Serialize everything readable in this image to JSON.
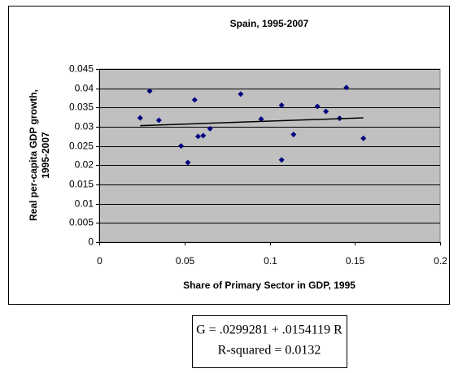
{
  "chart_data": {
    "type": "scatter",
    "title": "Spain, 1995-2007",
    "x_label": "Share of Primary Sector in GDP, 1995",
    "y_label": [
      "Real per-capita GDP growth,",
      "1995-2007"
    ],
    "xlim": [
      0,
      0.2
    ],
    "xticks": [
      0,
      0.05,
      0.1,
      0.15,
      0.2
    ],
    "ylim": [
      0,
      0.045
    ],
    "yticks": [
      0,
      0.005,
      0.01,
      0.015,
      0.02,
      0.025,
      0.03,
      0.035,
      0.04,
      0.045
    ],
    "grid": true,
    "series": [
      {
        "color": "#000080",
        "x": [
          0.024,
          0.0296,
          0.035,
          0.048,
          0.052,
          0.056,
          0.058,
          0.061,
          0.065,
          0.083,
          0.095,
          0.107,
          0.107,
          0.114,
          0.128,
          0.133,
          0.141,
          0.145,
          0.155
        ],
        "y": [
          0.0323,
          0.0393,
          0.0317,
          0.025,
          0.0207,
          0.037,
          0.0275,
          0.0277,
          0.0295,
          0.0385,
          0.032,
          0.0356,
          0.0214,
          0.028,
          0.0353,
          0.034,
          0.0322,
          0.0402,
          0.027
        ]
      }
    ],
    "trendline": {
      "intercept": 0.0299281,
      "slope": 0.0154119,
      "color": "#000000"
    },
    "note": [
      "G = .0299281 + .0154119 R",
      "R-squared = 0.0132"
    ]
  }
}
